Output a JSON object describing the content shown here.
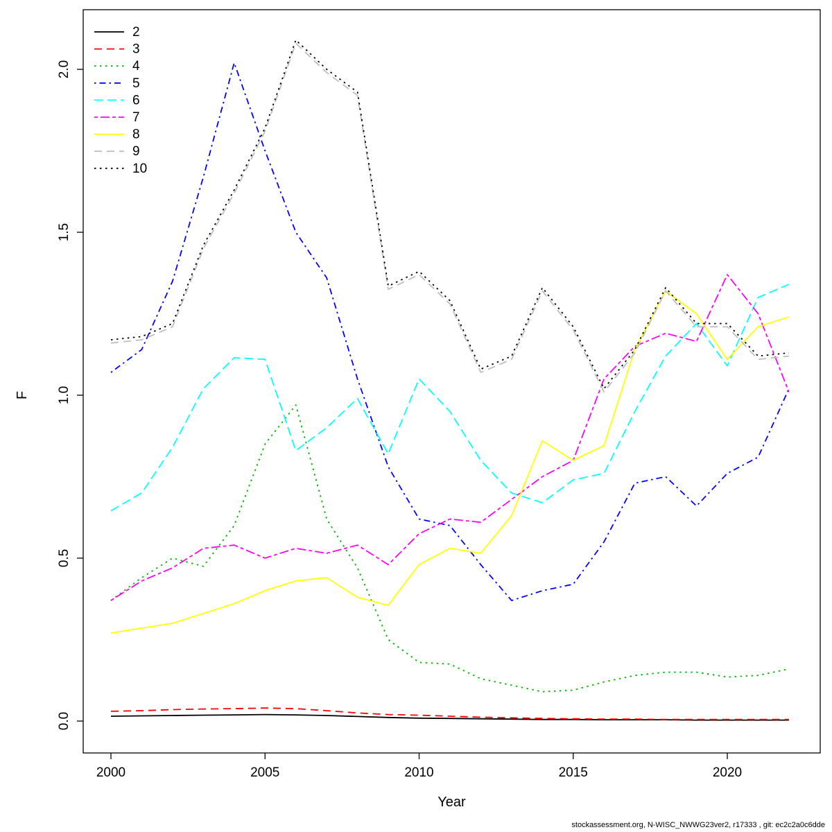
{
  "chart_data": {
    "type": "line",
    "title": "",
    "xlabel": "Year",
    "ylabel": "F",
    "x_ticks": [
      "2000",
      "2005",
      "2010",
      "2015",
      "2020"
    ],
    "x_tick_values": [
      2000,
      2005,
      2010,
      2015,
      2020
    ],
    "y_ticks": [
      "0.0",
      "0.5",
      "1.0",
      "1.5",
      "2.0"
    ],
    "y_tick_values": [
      0.0,
      0.5,
      1.0,
      1.5,
      2.0
    ],
    "xlim": [
      1999.1,
      2022.9
    ],
    "ylim": [
      -0.1,
      2.18
    ],
    "grid": false,
    "legend_position": "top-left",
    "x": [
      2000,
      2001,
      2002,
      2003,
      2004,
      2005,
      2006,
      2007,
      2008,
      2009,
      2010,
      2011,
      2012,
      2013,
      2014,
      2015,
      2016,
      2017,
      2018,
      2019,
      2020,
      2021,
      2022
    ],
    "series": [
      {
        "name": "2",
        "color": "#000000",
        "linetype": "solid",
        "values": [
          0.015,
          0.016,
          0.017,
          0.018,
          0.019,
          0.02,
          0.019,
          0.017,
          0.014,
          0.011,
          0.009,
          0.008,
          0.007,
          0.006,
          0.005,
          0.005,
          0.004,
          0.004,
          0.004,
          0.003,
          0.003,
          0.003,
          0.003
        ]
      },
      {
        "name": "3",
        "color": "#FF0000",
        "linetype": "dashed",
        "values": [
          0.03,
          0.032,
          0.035,
          0.037,
          0.038,
          0.04,
          0.038,
          0.032,
          0.025,
          0.02,
          0.018,
          0.015,
          0.012,
          0.01,
          0.008,
          0.007,
          0.006,
          0.006,
          0.005,
          0.005,
          0.005,
          0.005,
          0.005
        ]
      },
      {
        "name": "4",
        "color": "#00B400",
        "linetype": "dotted",
        "values": [
          0.37,
          0.44,
          0.5,
          0.475,
          0.6,
          0.85,
          0.97,
          0.62,
          0.47,
          0.25,
          0.18,
          0.175,
          0.13,
          0.11,
          0.09,
          0.095,
          0.12,
          0.14,
          0.15,
          0.15,
          0.135,
          0.14,
          0.16
        ]
      },
      {
        "name": "5",
        "color": "#0000FF",
        "linetype": "dotdash",
        "values": [
          1.07,
          1.14,
          1.35,
          1.67,
          2.02,
          1.75,
          1.5,
          1.36,
          1.05,
          0.78,
          0.62,
          0.6,
          0.48,
          0.37,
          0.4,
          0.42,
          0.55,
          0.73,
          0.75,
          0.66,
          0.76,
          0.81,
          1.02
        ]
      },
      {
        "name": "6",
        "color": "#00FFFF",
        "linetype": "longdash",
        "values": [
          0.645,
          0.7,
          0.84,
          1.02,
          1.115,
          1.11,
          0.83,
          0.9,
          0.99,
          0.82,
          1.05,
          0.95,
          0.8,
          0.7,
          0.67,
          0.74,
          0.76,
          0.95,
          1.12,
          1.22,
          1.09,
          1.3,
          1.34
        ]
      },
      {
        "name": "7",
        "color": "#FF00FF",
        "linetype": "twodash",
        "values": [
          0.37,
          0.43,
          0.47,
          0.53,
          0.54,
          0.5,
          0.53,
          0.515,
          0.54,
          0.48,
          0.575,
          0.62,
          0.61,
          0.68,
          0.75,
          0.8,
          1.05,
          1.15,
          1.19,
          1.165,
          1.37,
          1.25,
          1.01
        ]
      },
      {
        "name": "8",
        "color": "#FFFF00",
        "linetype": "solid",
        "values": [
          0.27,
          0.285,
          0.3,
          0.33,
          0.36,
          0.4,
          0.43,
          0.44,
          0.38,
          0.355,
          0.48,
          0.53,
          0.515,
          0.63,
          0.86,
          0.8,
          0.845,
          1.14,
          1.32,
          1.25,
          1.11,
          1.21,
          1.24
        ]
      },
      {
        "name": "9",
        "color": "#BEBEBE",
        "linetype": "dashed",
        "values": [
          1.16,
          1.17,
          1.21,
          1.45,
          1.62,
          1.81,
          2.08,
          1.99,
          1.92,
          1.325,
          1.37,
          1.28,
          1.07,
          1.11,
          1.32,
          1.2,
          1.01,
          1.13,
          1.32,
          1.21,
          1.21,
          1.11,
          1.12
        ]
      },
      {
        "name": "10",
        "color": "#000000",
        "linetype": "dotted",
        "values": [
          1.17,
          1.18,
          1.22,
          1.46,
          1.63,
          1.82,
          2.09,
          2.0,
          1.93,
          1.335,
          1.38,
          1.29,
          1.08,
          1.12,
          1.33,
          1.21,
          1.02,
          1.14,
          1.33,
          1.22,
          1.22,
          1.12,
          1.13
        ]
      }
    ],
    "legend_labels": [
      "2",
      "3",
      "4",
      "5",
      "6",
      "7",
      "8",
      "9",
      "10"
    ]
  },
  "footer": {
    "text": "stockassessment.org, N-WISC_NWWG23ver2, r17333 , git: ec2c2a0c6dde"
  }
}
